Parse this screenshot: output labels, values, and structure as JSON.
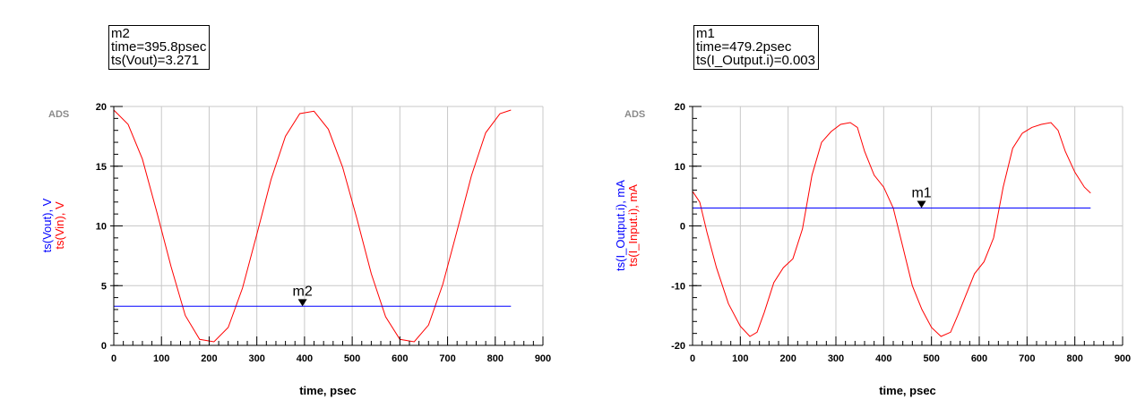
{
  "brand": "ADS",
  "chart_data": [
    {
      "type": "line",
      "marker": {
        "name": "m2",
        "line1": "time=395.8psec",
        "line2": "ts(Vout)=3.271",
        "x": 395.8,
        "y": 3.271
      },
      "xlabel": "time, psec",
      "ylabel_parts": [
        {
          "text": "ts(Vout), V",
          "color": "#0000ff"
        },
        {
          "text": "ts(Vin), V",
          "color": "#ff0000"
        }
      ],
      "xlim": [
        0,
        900
      ],
      "ylim": [
        0,
        20
      ],
      "xticks": [
        0,
        100,
        200,
        300,
        400,
        500,
        600,
        700,
        800,
        900
      ],
      "yticks": [
        0,
        5,
        10,
        15,
        20
      ],
      "grid": true,
      "series": [
        {
          "color": "#ff0000",
          "x": [
            0,
            30,
            60,
            90,
            120,
            150,
            180,
            210,
            240,
            270,
            300,
            330,
            360,
            390,
            420,
            450,
            480,
            510,
            540,
            570,
            600,
            630,
            660,
            690,
            720,
            750,
            780,
            810,
            833
          ],
          "y": [
            19.7,
            18.5,
            15.6,
            11.2,
            6.6,
            2.5,
            0.5,
            0.3,
            1.5,
            4.8,
            9.3,
            13.9,
            17.5,
            19.4,
            19.6,
            18.1,
            14.9,
            10.6,
            6.0,
            2.4,
            0.5,
            0.3,
            1.7,
            5.1,
            9.6,
            14.2,
            17.8,
            19.4,
            19.7
          ]
        },
        {
          "color": "#0000ff",
          "x": [
            0,
            833
          ],
          "y": [
            3.271,
            3.271
          ]
        }
      ]
    },
    {
      "type": "line",
      "marker": {
        "name": "m1",
        "line1": "time=479.2psec",
        "line2": "ts(I_Output.i)=0.003",
        "x": 479.2,
        "y": 3.0
      },
      "xlabel": "time, psec",
      "ylabel_parts": [
        {
          "text": "ts(I_Output.i), mA",
          "color": "#0000ff"
        },
        {
          "text": "ts(I_Input.i), mA",
          "color": "#ff0000"
        }
      ],
      "xlim": [
        0,
        900
      ],
      "ylim": [
        -20,
        20
      ],
      "xticks": [
        0,
        100,
        200,
        300,
        400,
        500,
        600,
        700,
        800,
        900
      ],
      "yticks": [
        -20,
        -10,
        0,
        10,
        20
      ],
      "grid": true,
      "series": [
        {
          "color": "#ff0000",
          "x": [
            0,
            15,
            30,
            50,
            75,
            100,
            120,
            135,
            150,
            170,
            190,
            210,
            230,
            250,
            270,
            290,
            310,
            330,
            345,
            360,
            380,
            400,
            420,
            440,
            460,
            480,
            500,
            520,
            540,
            555,
            570,
            590,
            610,
            630,
            650,
            670,
            690,
            710,
            730,
            750,
            765,
            780,
            800,
            820,
            833
          ],
          "y": [
            5.8,
            4.0,
            -1.0,
            -7.0,
            -13.0,
            -16.8,
            -18.5,
            -17.8,
            -14.5,
            -9.5,
            -7.0,
            -5.5,
            -0.5,
            8.5,
            14.0,
            15.8,
            17.0,
            17.3,
            16.5,
            12.5,
            8.5,
            6.5,
            3.0,
            -3.5,
            -10.0,
            -14.0,
            -17.0,
            -18.5,
            -17.8,
            -15.0,
            -12.0,
            -8.0,
            -6.0,
            -2.0,
            6.5,
            13.0,
            15.5,
            16.5,
            17.0,
            17.3,
            16.0,
            12.5,
            9.0,
            6.5,
            5.5
          ]
        },
        {
          "color": "#0000ff",
          "x": [
            0,
            833
          ],
          "y": [
            3.0,
            3.0
          ]
        }
      ]
    }
  ]
}
